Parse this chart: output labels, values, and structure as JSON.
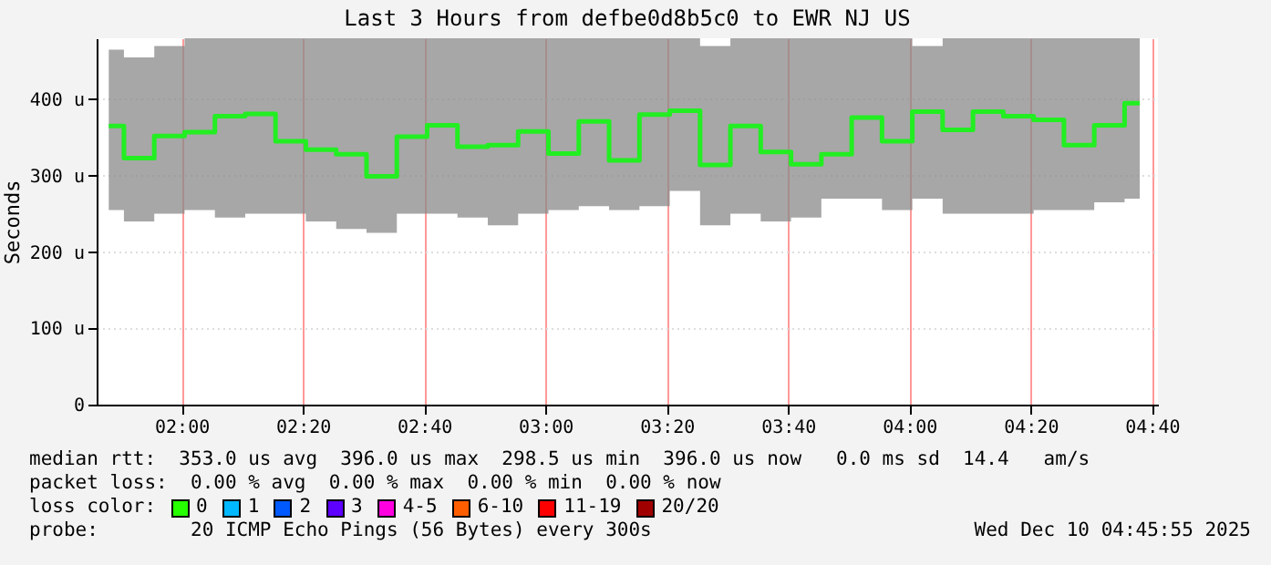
{
  "chart_data": {
    "type": "step",
    "title": "Last 3 Hours from defbe0d8b5c0 to EWR NJ US",
    "ylabel": "Seconds",
    "x": [
      "2025-12-10T01:48",
      "2025-12-10T01:53",
      "2025-12-10T01:58",
      "2025-12-10T02:03",
      "2025-12-10T02:08",
      "2025-12-10T02:13",
      "2025-12-10T02:18",
      "2025-12-10T02:23",
      "2025-12-10T02:28",
      "2025-12-10T02:33",
      "2025-12-10T02:38",
      "2025-12-10T02:43",
      "2025-12-10T02:48",
      "2025-12-10T02:53",
      "2025-12-10T02:58",
      "2025-12-10T03:03",
      "2025-12-10T03:08",
      "2025-12-10T03:13",
      "2025-12-10T03:18",
      "2025-12-10T03:23",
      "2025-12-10T03:28",
      "2025-12-10T03:33",
      "2025-12-10T03:38",
      "2025-12-10T03:43",
      "2025-12-10T03:48",
      "2025-12-10T03:53",
      "2025-12-10T03:58",
      "2025-12-10T04:03",
      "2025-12-10T04:08",
      "2025-12-10T04:13",
      "2025-12-10T04:18",
      "2025-12-10T04:23",
      "2025-12-10T04:28",
      "2025-12-10T04:33",
      "2025-12-10T04:38"
    ],
    "series": [
      {
        "color": "#22ee22",
        "values": [
          365,
          323,
          352,
          357,
          378,
          381,
          345,
          334,
          328,
          299,
          351,
          366,
          338,
          340,
          358,
          329,
          371,
          320,
          380,
          385,
          314,
          365,
          331,
          315,
          328,
          376,
          345,
          384,
          360,
          384,
          378,
          373,
          340,
          366,
          395
        ],
        "lower": [
          255,
          240,
          250,
          255,
          245,
          250,
          250,
          240,
          230,
          225,
          250,
          250,
          245,
          235,
          250,
          255,
          260,
          255,
          260,
          280,
          235,
          250,
          240,
          245,
          270,
          270,
          255,
          270,
          250,
          250,
          250,
          255,
          255,
          265,
          270
        ],
        "upper": [
          465,
          455,
          470,
          480,
          480,
          480,
          480,
          480,
          480,
          480,
          480,
          480,
          480,
          480,
          480,
          480,
          480,
          480,
          480,
          480,
          470,
          480,
          480,
          480,
          480,
          480,
          480,
          470,
          480,
          480,
          480,
          480,
          480,
          480,
          480
        ]
      }
    ],
    "xlim": [
      "2025-12-10T01:46",
      "2025-12-10T04:41"
    ],
    "xticks": [
      {
        "value": "2025-12-10T02:00",
        "label": "02:00"
      },
      {
        "value": "2025-12-10T02:20",
        "label": "02:20"
      },
      {
        "value": "2025-12-10T02:40",
        "label": "02:40"
      },
      {
        "value": "2025-12-10T03:00",
        "label": "03:00"
      },
      {
        "value": "2025-12-10T03:20",
        "label": "03:20"
      },
      {
        "value": "2025-12-10T03:40",
        "label": "03:40"
      },
      {
        "value": "2025-12-10T04:00",
        "label": "04:00"
      },
      {
        "value": "2025-12-10T04:20",
        "label": "04:20"
      },
      {
        "value": "2025-12-10T04:40",
        "label": "04:40"
      }
    ],
    "ylim": [
      0,
      480
    ],
    "yticks": [
      0,
      {
        "value": 100,
        "label": "100 u"
      },
      {
        "value": 200,
        "label": "200 u"
      },
      {
        "value": 300,
        "label": "300 u"
      },
      {
        "value": 400,
        "label": "400 u"
      }
    ],
    "grid": true,
    "annotations": [
      "median rtt:  353.0 us avg  396.0 us max  298.5 us min  396.0 us now   0.0 ms sd  14.4   am/s",
      "packet loss:  0.00 % avg  0.00 % max  0.00 % min  0.00 % now",
      "loss color:",
      "0",
      "1",
      "2",
      "3",
      "4-5",
      "6-10",
      "11-19",
      "20/20",
      "probe:        20 ICMP Echo Pings (56 Bytes) every 300s",
      "Wed Dec 10 04:45:55 2025"
    ]
  }
}
